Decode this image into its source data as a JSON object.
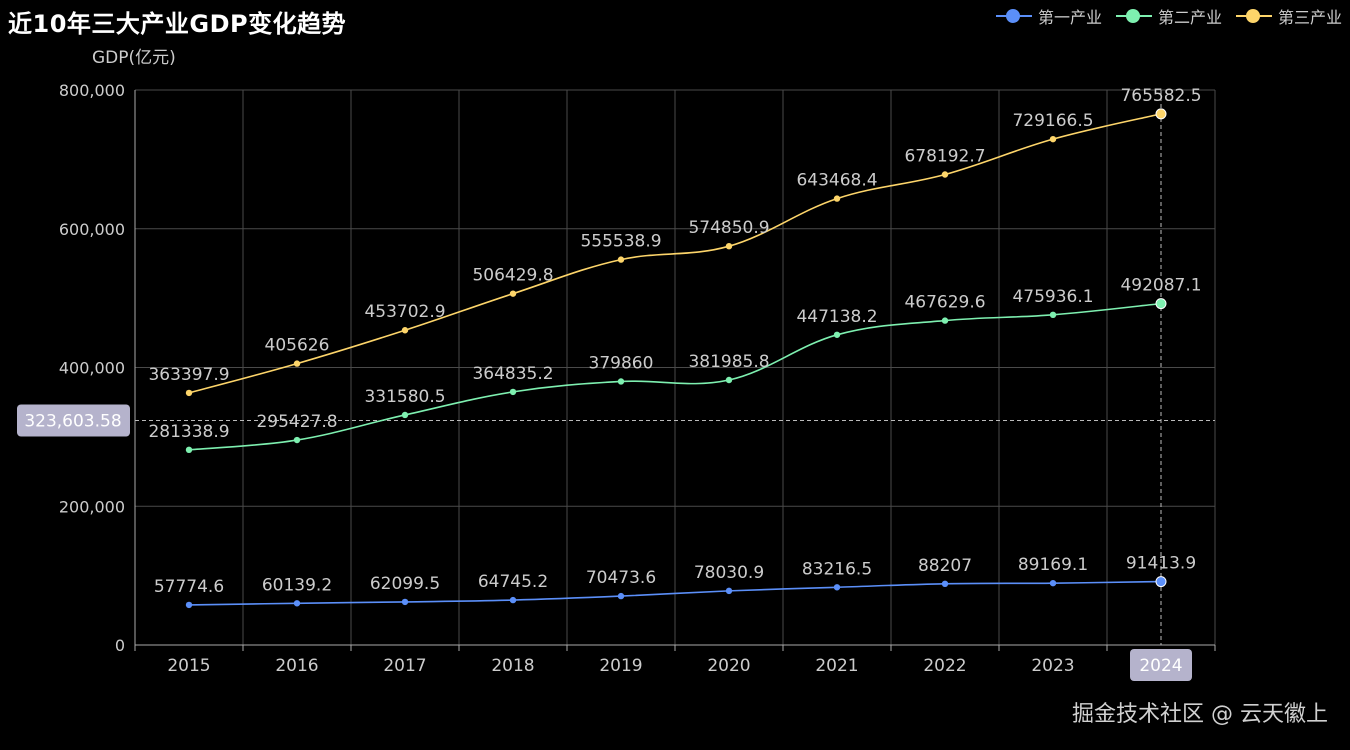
{
  "title": "近10年三大产业GDP变化趋势",
  "watermark": "掘金技术社区 @ 云天徽上",
  "pointer": {
    "y_value": "323,603.58",
    "x_value": "2024"
  },
  "colors": {
    "primary": "#5b8ff9",
    "secondary": "#7ef0b0",
    "tertiary": "#fdd56a",
    "grid": "#4a4a4a",
    "text": "#cccccc",
    "badge": "#b5b3cc"
  },
  "chart_data": {
    "type": "line",
    "ylabel": "GDP(亿元)",
    "xlabel": "",
    "categories": [
      "2015",
      "2016",
      "2017",
      "2018",
      "2019",
      "2020",
      "2021",
      "2022",
      "2023",
      "2024"
    ],
    "ylim": [
      0,
      800000
    ],
    "yticks": [
      0,
      200000,
      400000,
      600000,
      800000
    ],
    "ytick_labels": [
      "0",
      "200,000",
      "400,000",
      "600,000",
      "800,000"
    ],
    "grid": true,
    "smooth": true,
    "legend_position": "top-right",
    "series": [
      {
        "name": "第一产业",
        "color": "#5b8ff9",
        "values": [
          57774.6,
          60139.2,
          62099.5,
          64745.2,
          70473.6,
          78030.9,
          83216.5,
          88207,
          89169.1,
          91413.9
        ],
        "labels": [
          "57774.6",
          "60139.2",
          "62099.5",
          "64745.2",
          "70473.6",
          "78030.9",
          "83216.5",
          "88207",
          "89169.1",
          "91413.9"
        ]
      },
      {
        "name": "第二产业",
        "color": "#7ef0b0",
        "values": [
          281338.9,
          295427.8,
          331580.5,
          364835.2,
          379860,
          381985.8,
          447138.2,
          467629.6,
          475936.1,
          492087.1
        ],
        "labels": [
          "281338.9",
          "295427.8",
          "331580.5",
          "364835.2",
          "379860",
          "381985.8",
          "447138.2",
          "467629.6",
          "475936.1",
          "492087.1"
        ]
      },
      {
        "name": "第三产业",
        "color": "#fdd56a",
        "values": [
          363397.9,
          405626,
          453702.9,
          506429.8,
          555538.9,
          574850.9,
          643468.4,
          678192.7,
          729166.5,
          765582.5
        ],
        "labels": [
          "363397.9",
          "405626",
          "453702.9",
          "506429.8",
          "555538.9",
          "574850.9",
          "643468.4",
          "678192.7",
          "729166.5",
          "765582.5"
        ]
      }
    ]
  }
}
